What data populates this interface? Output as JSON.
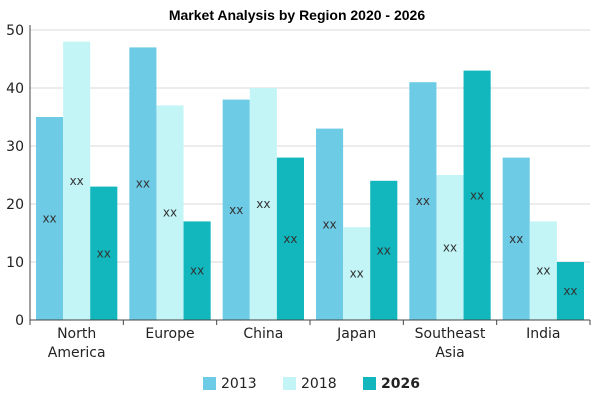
{
  "chart_data": {
    "type": "bar",
    "title": "Market Analysis by Region 2020 - 2026",
    "categories": [
      [
        "North",
        "America"
      ],
      [
        "Europe"
      ],
      [
        "China"
      ],
      [
        "Japan"
      ],
      [
        "Southeast",
        "Asia"
      ],
      [
        "India"
      ]
    ],
    "series": [
      {
        "name": "2013",
        "values": [
          35,
          47,
          38,
          33,
          41,
          28
        ],
        "data_labels": [
          "xx",
          "xx",
          "xx",
          "xx",
          "xx",
          "xx"
        ]
      },
      {
        "name": "2018",
        "values": [
          48,
          37,
          40,
          16,
          25,
          17
        ],
        "data_labels": [
          "xx",
          "xx",
          "xx",
          "xx",
          "xx",
          "xx"
        ]
      },
      {
        "name": "2026",
        "values": [
          23,
          17,
          28,
          24,
          43,
          10
        ],
        "data_labels": [
          "xx",
          "xx",
          "xx",
          "xx",
          "xx",
          "xx"
        ]
      }
    ],
    "ylim": [
      0,
      50
    ],
    "yticks": [
      0,
      10,
      20,
      30,
      40,
      50
    ],
    "grid": true,
    "legend_position": "bottom"
  },
  "colors": {
    "series": [
      "#6ecbe6",
      "#c3f5f7",
      "#11b7bd"
    ],
    "grid": "#d9d9d9",
    "axis": "#444444"
  }
}
